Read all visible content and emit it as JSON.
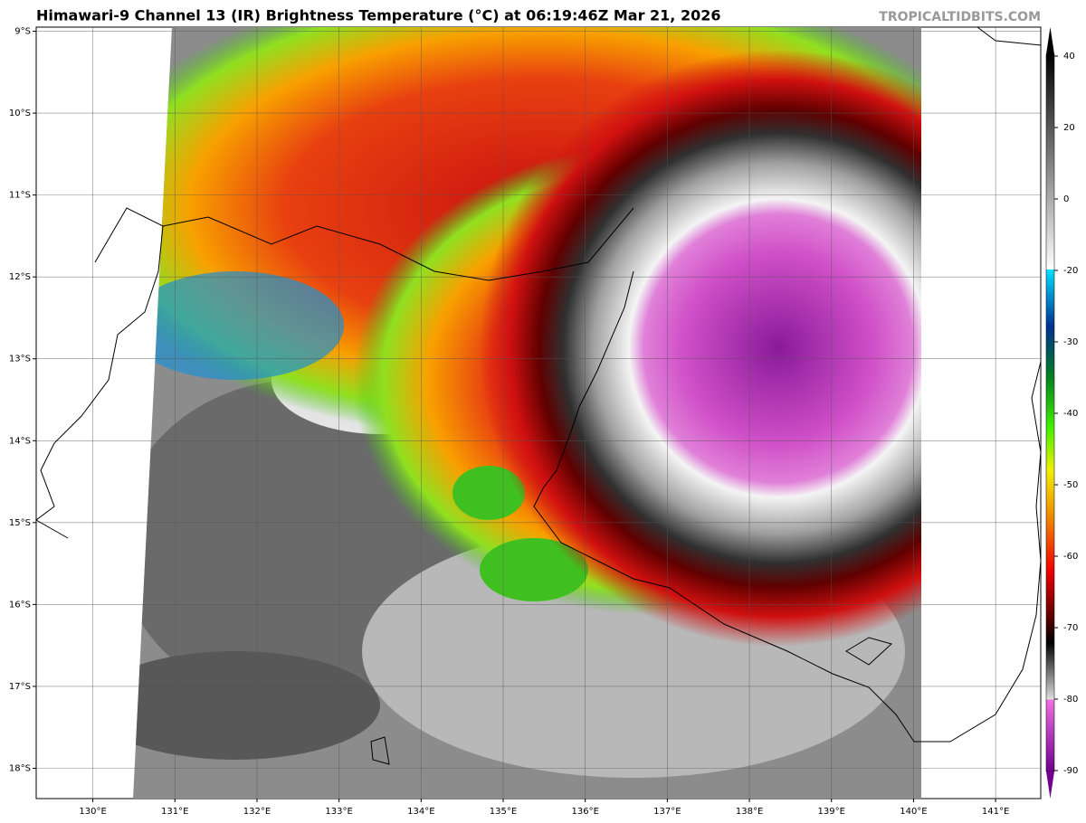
{
  "map": {
    "title": "Himawari-9 Channel 13 (IR) Brightness Temperature (°C) at 06:19:46Z Mar 21, 2026",
    "credit": "TROPICALTIDBITS.COM",
    "lonlim": [
      129.31,
      141.55
    ],
    "latlim": [
      -8.95,
      -18.37
    ],
    "lonticks": [
      {
        "value": 130,
        "label": "130°E"
      },
      {
        "value": 131,
        "label": "131°E"
      },
      {
        "value": 132,
        "label": "132°E"
      },
      {
        "value": 133,
        "label": "133°E"
      },
      {
        "value": 134,
        "label": "134°E"
      },
      {
        "value": 135,
        "label": "135°E"
      },
      {
        "value": 136,
        "label": "136°E"
      },
      {
        "value": 137,
        "label": "137°E"
      },
      {
        "value": 138,
        "label": "138°E"
      },
      {
        "value": 139,
        "label": "139°E"
      },
      {
        "value": 140,
        "label": "140°E"
      },
      {
        "value": 141,
        "label": "141°E"
      }
    ],
    "latticks": [
      {
        "value": -9,
        "label": "9°S"
      },
      {
        "value": -10,
        "label": "10°S"
      },
      {
        "value": -11,
        "label": "11°S"
      },
      {
        "value": -12,
        "label": "12°S"
      },
      {
        "value": -13,
        "label": "13°S"
      },
      {
        "value": -14,
        "label": "14°S"
      },
      {
        "value": -15,
        "label": "15°S"
      },
      {
        "value": -16,
        "label": "16°S"
      },
      {
        "value": -17,
        "label": "17°S"
      },
      {
        "value": -18,
        "label": "18°S"
      }
    ],
    "colorbar_ticks": [
      40,
      20,
      0,
      -20,
      -30,
      -40,
      -50,
      -60,
      -70,
      -80,
      -90
    ]
  }
}
